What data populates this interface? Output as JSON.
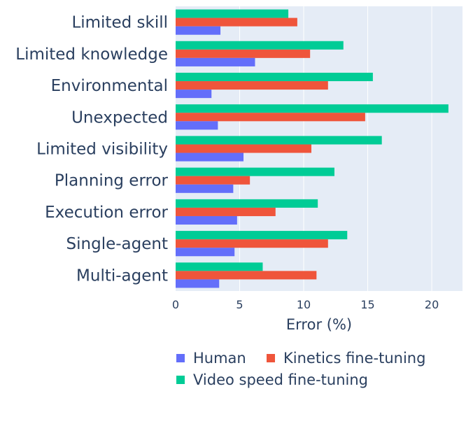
{
  "chart_data": {
    "type": "bar",
    "orientation": "horizontal",
    "categories": [
      "Limited skill",
      "Limited knowledge",
      "Environmental",
      "Unexpected",
      "Limited visibility",
      "Planning error",
      "Execution error",
      "Single-agent",
      "Multi-agent"
    ],
    "series": [
      {
        "name": "Human",
        "color": "#636efa",
        "values": [
          3.5,
          6.2,
          2.8,
          3.3,
          5.3,
          4.5,
          4.8,
          4.6,
          3.4
        ]
      },
      {
        "name": "Kinetics fine-tuning",
        "color": "#ef553b",
        "values": [
          9.5,
          10.5,
          11.9,
          14.8,
          10.6,
          5.8,
          7.8,
          11.9,
          11.0
        ]
      },
      {
        "name": "Video speed fine-tuning",
        "color": "#00cc96",
        "values": [
          8.8,
          13.1,
          15.4,
          21.3,
          16.1,
          12.4,
          11.1,
          13.4,
          6.8
        ]
      }
    ],
    "xlabel": "Error (%)",
    "xlim": [
      0,
      22.4
    ],
    "xticks": [
      0,
      5,
      10,
      15,
      20
    ],
    "grid": true,
    "legend_position": "bottom",
    "legend_rows": [
      [
        "Human",
        "Kinetics fine-tuning"
      ],
      [
        "Video speed fine-tuning"
      ]
    ],
    "plot_background": "#e5ecf6"
  }
}
